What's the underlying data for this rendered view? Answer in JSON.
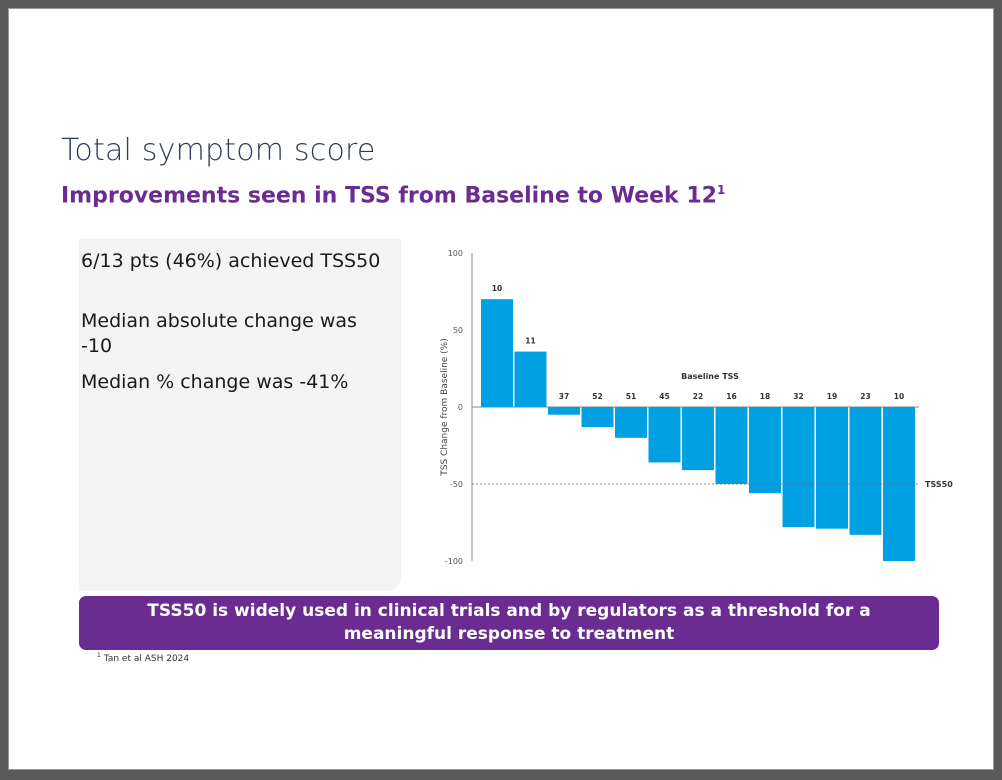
{
  "title": "Total symptom score",
  "subtitle": {
    "text": "Improvements seen in TSS from Baseline to Week 12",
    "ref": "1"
  },
  "summary": [
    "6/13 pts (46%) achieved TSS50",
    "Median absolute change was -10",
    "Median % change was -41%"
  ],
  "callout": "TSS50 is widely used in clinical trials and by regulators as a threshold for a meaningful response to treatment",
  "footnote": {
    "ref": "1",
    "text": "Tan et al ASH 2024"
  },
  "colors": {
    "bar": "#00a0e3",
    "purple": "#6a2c91",
    "title": "#2f3a5a"
  },
  "chart_data": {
    "type": "bar",
    "title": "",
    "xlabel": "",
    "ylabel": "TSS Change from Baseline (%)",
    "ylim": [
      -100,
      100
    ],
    "yticks": [
      100,
      50,
      0,
      -50,
      -100
    ],
    "baseline_header": "Baseline TSS",
    "series": [
      {
        "values": [
          70,
          36,
          -5,
          -13,
          -20,
          -36,
          -41,
          -50,
          -56,
          -78,
          -79,
          -83,
          -100
        ],
        "bar_labels": [
          "10",
          "11",
          "37",
          "52",
          "51",
          "45",
          "22",
          "16",
          "18",
          "32",
          "19",
          "23",
          "10"
        ]
      }
    ],
    "reference_line": {
      "y": -50,
      "label": "TSS50",
      "style": "dashed"
    },
    "grid": false
  }
}
